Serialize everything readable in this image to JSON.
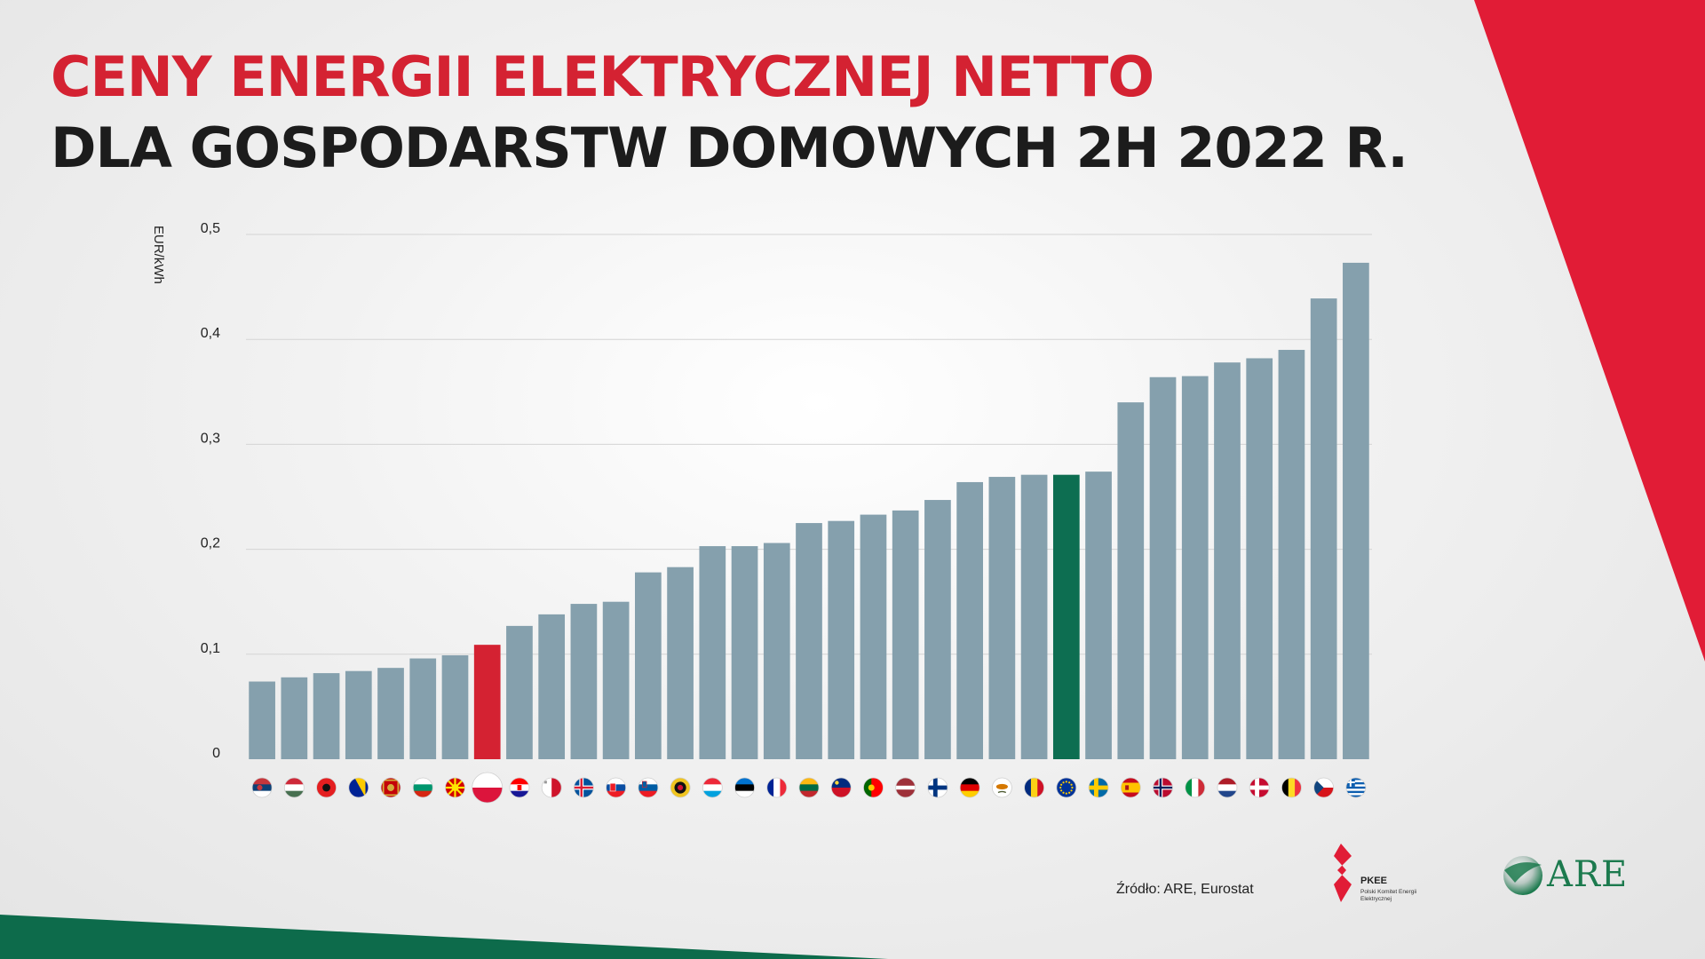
{
  "header": {
    "title_line1": "CENY ENERGII ELEKTRYCZNEJ NETTO",
    "title_line2": "DLA GOSPODARSTW DOMOWYCH 2H 2022 R."
  },
  "footer": {
    "source": "Źródło: ARE, Eurostat",
    "pkee_name": "PKEE",
    "pkee_full": "Polski Komitet Energii Elektrycznej",
    "are_name": "ARE"
  },
  "colors": {
    "bar_default": "#85a0ad",
    "bar_poland": "#d42232",
    "bar_eu": "#0d6e51",
    "accent_red": "#e11c36",
    "accent_green": "#0d6b4b"
  },
  "chart_data": {
    "type": "bar",
    "ylabel": "EUR/kWh",
    "ylim": [
      0,
      0.5
    ],
    "yticks": [
      "0",
      "0,1",
      "0,2",
      "0,3",
      "0,4",
      "0,5"
    ],
    "grid": true,
    "categories": [
      "RS",
      "HU",
      "AL",
      "BA",
      "ME",
      "BG",
      "MK",
      "PL",
      "HR",
      "MT",
      "IS",
      "SK",
      "SI",
      "XK",
      "LU",
      "EE",
      "FR",
      "LT",
      "LI",
      "PT",
      "LV",
      "FI",
      "DE",
      "CY",
      "RO",
      "EU",
      "SE",
      "ES",
      "NO",
      "IT",
      "NL",
      "DK",
      "BE",
      "CZ",
      "GR"
    ],
    "category_icons": [
      "flag-serbia-icon",
      "flag-hungary-icon",
      "flag-albania-icon",
      "flag-bosnia-icon",
      "flag-montenegro-icon",
      "flag-bulgaria-icon",
      "flag-north-macedonia-icon",
      "flag-poland-icon",
      "flag-croatia-icon",
      "flag-malta-icon",
      "flag-iceland-icon",
      "flag-slovakia-icon",
      "flag-slovenia-icon",
      "flag-kosovo-icon",
      "flag-luxembourg-icon",
      "flag-estonia-icon",
      "flag-france-icon",
      "flag-lithuania-icon",
      "flag-liechtenstein-icon",
      "flag-portugal-icon",
      "flag-latvia-icon",
      "flag-finland-icon",
      "flag-germany-icon",
      "flag-cyprus-icon",
      "flag-romania-icon",
      "flag-eu-icon",
      "flag-sweden-icon",
      "flag-spain-icon",
      "flag-norway-icon",
      "flag-italy-icon",
      "flag-netherlands-icon",
      "flag-denmark-icon",
      "flag-belgium-icon",
      "flag-czechia-icon",
      "flag-greece-icon"
    ],
    "values": [
      0.074,
      0.078,
      0.082,
      0.084,
      0.087,
      0.096,
      0.099,
      0.109,
      0.127,
      0.138,
      0.148,
      0.15,
      0.178,
      0.183,
      0.203,
      0.203,
      0.206,
      0.225,
      0.227,
      0.233,
      0.237,
      0.247,
      0.264,
      0.269,
      0.271,
      0.271,
      0.274,
      0.34,
      0.364,
      0.365,
      0.378,
      0.382,
      0.39,
      0.439,
      0.473
    ],
    "highlight": {
      "PL": "bar_poland",
      "EU": "bar_eu"
    }
  }
}
